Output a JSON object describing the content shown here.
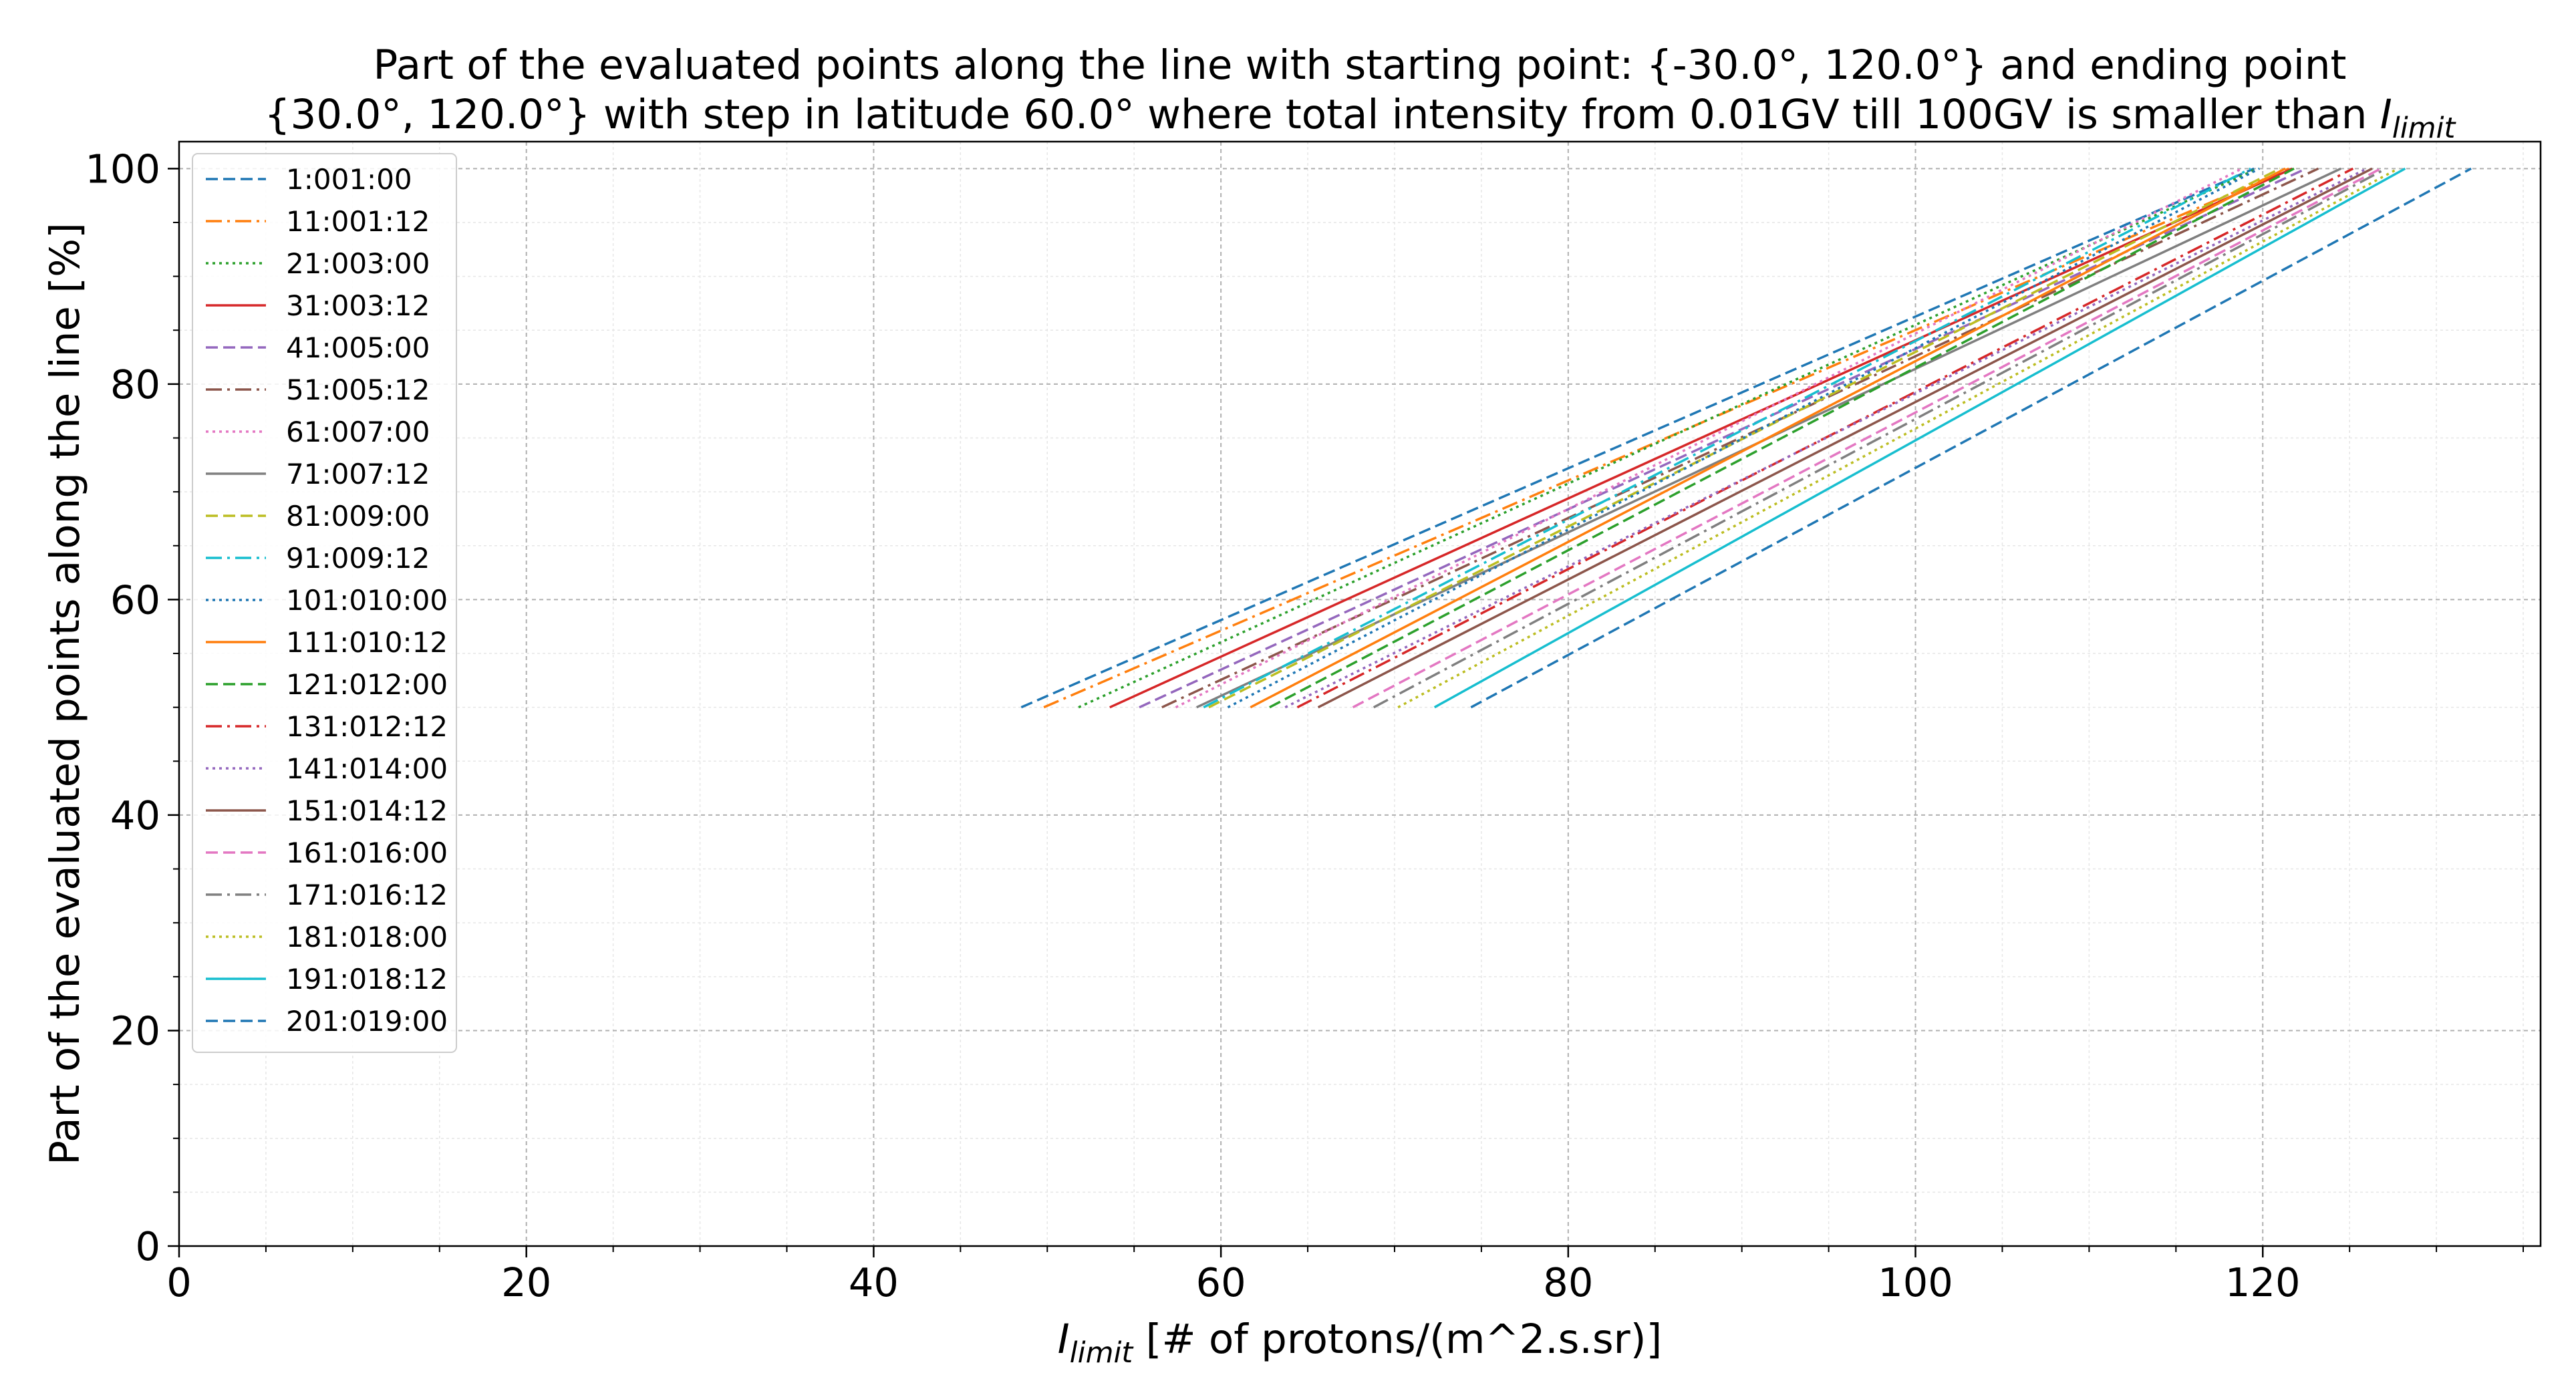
{
  "chart_data": {
    "type": "line",
    "title_line1": "Part of the evaluated points along the line with starting point: {-30.0°, 120.0°} and ending point",
    "title_line2_prefix": "{30.0°, 120.0°} with step in latitude 60.0° where total intensity from 0.01GV till 100GV is smaller than ",
    "title_line2_var": "I",
    "title_line2_sub": "limit",
    "xlabel_var": "I",
    "xlabel_sub": "limit",
    "xlabel_rest": " [# of protons/(m^2.s.sr)]",
    "ylabel": "Part of the evaluated points along the line  [%]",
    "xlim": [
      0,
      136
    ],
    "ylim": [
      0,
      102.5
    ],
    "xticks": [
      0,
      20,
      40,
      60,
      80,
      100,
      120
    ],
    "yticks": [
      0,
      20,
      40,
      60,
      80,
      100
    ],
    "grid": true,
    "legend_position": "upper-left",
    "colors": {
      "c0": "#1f77b4",
      "c1": "#ff7f0e",
      "c2": "#2ca02c",
      "c3": "#d62728",
      "c4": "#9467bd",
      "c5": "#8c564b",
      "c6": "#e377c2",
      "c7": "#7f7f7f",
      "c8": "#bcbd22",
      "c9": "#17becf"
    },
    "series": [
      {
        "name": "1:001:00",
        "color": "#1f77b4",
        "style": "dashed",
        "x": [
          48.5,
          119.5
        ],
        "y": [
          50,
          100
        ]
      },
      {
        "name": "11:001:12",
        "color": "#ff7f0e",
        "style": "dashdot",
        "x": [
          49.8,
          121.5
        ],
        "y": [
          50,
          100
        ]
      },
      {
        "name": "21:003:00",
        "color": "#2ca02c",
        "style": "dotted",
        "x": [
          51.8,
          119.7
        ],
        "y": [
          50,
          100
        ]
      },
      {
        "name": "31:003:12",
        "color": "#d62728",
        "style": "solid",
        "x": [
          53.6,
          121.7
        ],
        "y": [
          50,
          100
        ]
      },
      {
        "name": "41:005:00",
        "color": "#9467bd",
        "style": "dashed",
        "x": [
          55.3,
          122.5
        ],
        "y": [
          50,
          100
        ]
      },
      {
        "name": "51:005:12",
        "color": "#8c564b",
        "style": "dashdot",
        "x": [
          56.6,
          123.2
        ],
        "y": [
          50,
          100
        ]
      },
      {
        "name": "61:007:00",
        "color": "#e377c2",
        "style": "dotted",
        "x": [
          57.4,
          118.8
        ],
        "y": [
          50,
          100
        ]
      },
      {
        "name": "71:007:12",
        "color": "#7f7f7f",
        "style": "solid",
        "x": [
          58.6,
          124.5
        ],
        "y": [
          50,
          100
        ]
      },
      {
        "name": "81:009:00",
        "color": "#bcbd22",
        "style": "dashed",
        "x": [
          59.3,
          121.0
        ],
        "y": [
          50,
          100
        ]
      },
      {
        "name": "91:009:12",
        "color": "#17becf",
        "style": "dashdot",
        "x": [
          59.0,
          119.3
        ],
        "y": [
          50,
          100
        ]
      },
      {
        "name": "101:010:00",
        "color": "#1f77b4",
        "style": "dotted",
        "x": [
          60.4,
          119.8
        ],
        "y": [
          50,
          100
        ]
      },
      {
        "name": "111:010:12",
        "color": "#ff7f0e",
        "style": "solid",
        "x": [
          61.7,
          121.3
        ],
        "y": [
          50,
          100
        ]
      },
      {
        "name": "121:012:00",
        "color": "#2ca02c",
        "style": "dashed",
        "x": [
          62.8,
          121.8
        ],
        "y": [
          50,
          100
        ]
      },
      {
        "name": "131:012:12",
        "color": "#d62728",
        "style": "dashdot",
        "x": [
          64.4,
          125.2
        ],
        "y": [
          50,
          100
        ]
      },
      {
        "name": "141:014:00",
        "color": "#9467bd",
        "style": "dotted",
        "x": [
          63.7,
          126.0
        ],
        "y": [
          50,
          100
        ]
      },
      {
        "name": "151:014:12",
        "color": "#8c564b",
        "style": "solid",
        "x": [
          65.6,
          126.3
        ],
        "y": [
          50,
          100
        ]
      },
      {
        "name": "161:016:00",
        "color": "#e377c2",
        "style": "dashed",
        "x": [
          67.6,
          126.8
        ],
        "y": [
          50,
          100
        ]
      },
      {
        "name": "171:016:12",
        "color": "#7f7f7f",
        "style": "dashdot",
        "x": [
          68.8,
          127.1
        ],
        "y": [
          50,
          100
        ]
      },
      {
        "name": "181:018:00",
        "color": "#bcbd22",
        "style": "dotted",
        "x": [
          70.2,
          127.8
        ],
        "y": [
          50,
          100
        ]
      },
      {
        "name": "191:018:12",
        "color": "#17becf",
        "style": "solid",
        "x": [
          72.3,
          128.2
        ],
        "y": [
          50,
          100
        ]
      },
      {
        "name": "201:019:00",
        "color": "#1f77b4",
        "style": "dashed",
        "x": [
          74.4,
          132.0
        ],
        "y": [
          50,
          100
        ]
      }
    ]
  }
}
